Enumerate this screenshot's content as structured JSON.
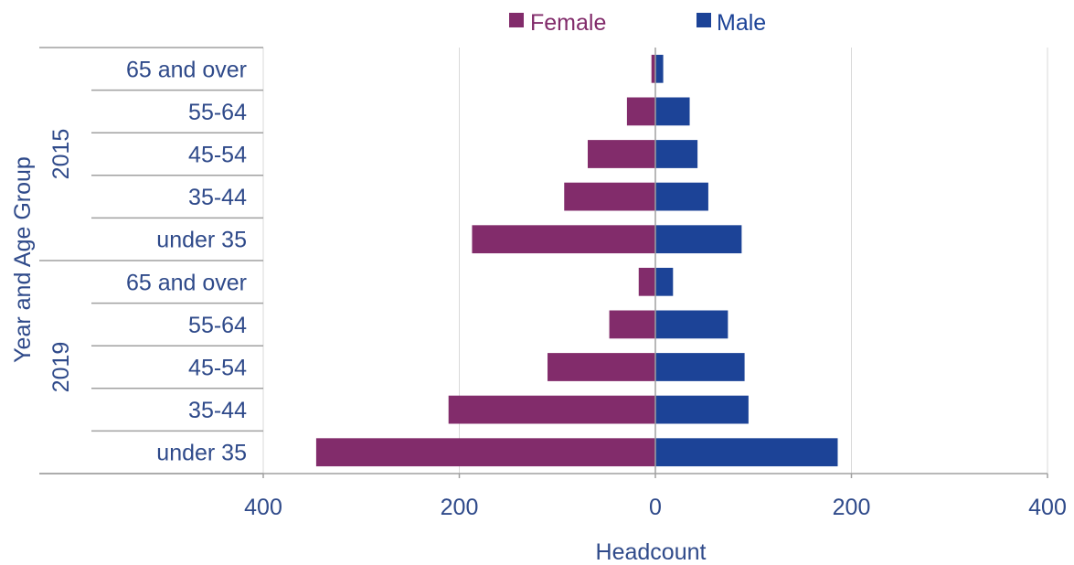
{
  "chart_data": {
    "type": "bar",
    "orientation": "horizontal",
    "xlabel": "Headcount",
    "ylabel": "Year and Age Group",
    "xlim": [
      -400,
      400
    ],
    "x_ticks": [
      {
        "value": -400,
        "label": "400"
      },
      {
        "value": -200,
        "label": "200"
      },
      {
        "value": 0,
        "label": "0"
      },
      {
        "value": 200,
        "label": "200"
      },
      {
        "value": 400,
        "label": "400"
      }
    ],
    "grid": true,
    "legend": "top",
    "groups": [
      {
        "label": "2015",
        "categories": [
          "65 and over",
          "55-64",
          "45-54",
          "35-44",
          "under 35"
        ]
      },
      {
        "label": "2019",
        "categories": [
          "65 and over",
          "55-64",
          "45-54",
          "35-44",
          "under 35"
        ]
      }
    ],
    "series": [
      {
        "name": "Female",
        "color": "#822C6B",
        "values": [
          4,
          29,
          69,
          93,
          187,
          17,
          47,
          110,
          211,
          346
        ]
      },
      {
        "name": "Male",
        "color": "#1C4397",
        "values": [
          8,
          35,
          43,
          54,
          88,
          18,
          74,
          91,
          95,
          186
        ]
      }
    ]
  },
  "colors": {
    "text": "#2F4A8A",
    "axis": "#A0A0A0",
    "grid": "#D9D9D9"
  }
}
